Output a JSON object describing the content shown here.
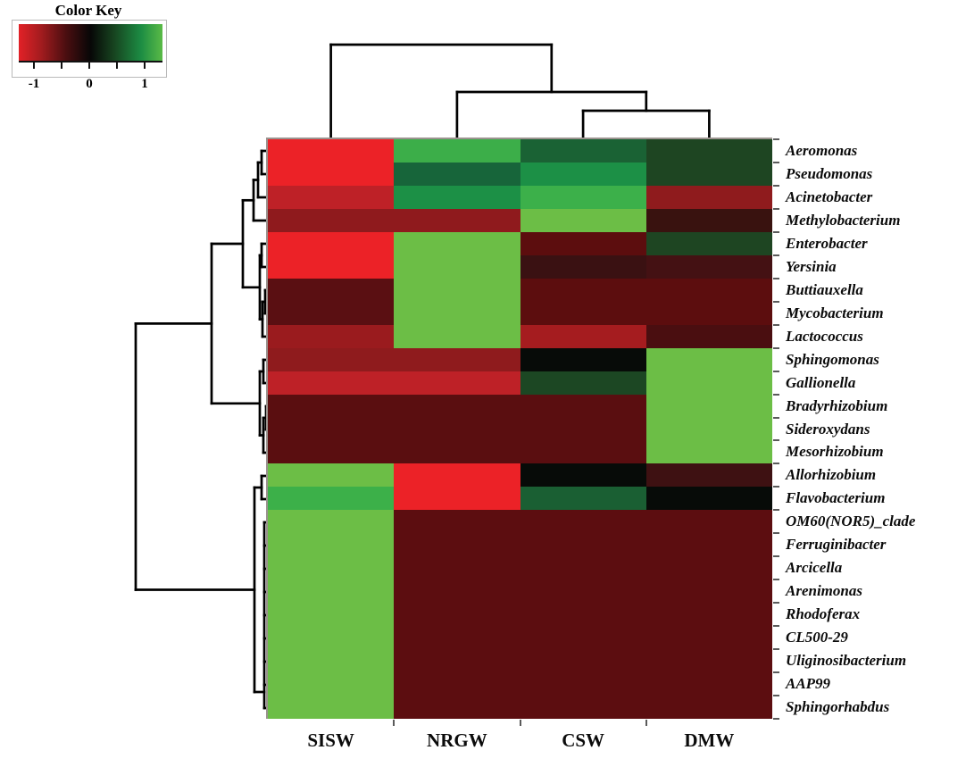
{
  "color_key": {
    "title": "Color Key",
    "ticks": [
      "-1",
      "0",
      "1"
    ],
    "gradient_stops": [
      "#e22127",
      "#a51c1f",
      "#4a0e10",
      "#070707",
      "#17431f",
      "#1c8c43",
      "#5abb47"
    ]
  },
  "chart_data": {
    "type": "heatmap",
    "title": "Color Key",
    "legend_position": "top-left",
    "colorbar_range": [
      -1,
      1
    ],
    "color_scale": {
      "negative": "#ec2227",
      "zero": "#000000",
      "positive": "#6cbe46"
    },
    "columns": [
      "SISW",
      "NRGW",
      "CSW",
      "DMW"
    ],
    "rows": [
      "Aeromonas",
      "Pseudomonas",
      "Acinetobacter",
      "Methylobacterium",
      "Enterobacter",
      "Yersinia",
      "Buttiauxella",
      "Mycobacterium",
      "Lactococcus",
      "Sphingomonas",
      "Gallionella",
      "Bradyrhizobium",
      "Sideroxydans",
      "Mesorhizobium",
      "Allorhizobium",
      "Flavobacterium",
      "OM60(NOR5)_clade",
      "Ferruginibacter",
      "Arcicella",
      "Arenimonas",
      "Rhodoferax",
      "CL500-29",
      "Uliginosibacterium",
      "AAP99",
      "Sphingorhabdus"
    ],
    "values": [
      [
        -1.2,
        0.95,
        0.5,
        0.3
      ],
      [
        -1.2,
        0.5,
        0.75,
        0.3
      ],
      [
        -0.9,
        0.75,
        0.95,
        -0.6
      ],
      [
        -0.6,
        -0.6,
        1.2,
        -0.15
      ],
      [
        -1.2,
        1.2,
        -0.35,
        0.3
      ],
      [
        -1.2,
        1.2,
        -0.15,
        -0.15
      ],
      [
        -0.35,
        1.2,
        -0.35,
        -0.35
      ],
      [
        -0.35,
        1.2,
        -0.35,
        -0.35
      ],
      [
        -0.7,
        1.2,
        -0.75,
        -0.25
      ],
      [
        -0.6,
        -0.6,
        0.0,
        1.2
      ],
      [
        -0.9,
        -0.9,
        0.3,
        1.2
      ],
      [
        -0.35,
        -0.35,
        -0.35,
        1.2
      ],
      [
        -0.35,
        -0.35,
        -0.35,
        1.2
      ],
      [
        -0.35,
        -0.35,
        -0.35,
        1.2
      ],
      [
        1.2,
        -1.2,
        0.0,
        -0.15
      ],
      [
        0.95,
        -1.2,
        0.5,
        0.0
      ],
      [
        1.2,
        -0.35,
        -0.35,
        -0.35
      ],
      [
        1.2,
        -0.35,
        -0.35,
        -0.35
      ],
      [
        1.2,
        -0.35,
        -0.35,
        -0.35
      ],
      [
        1.2,
        -0.35,
        -0.35,
        -0.35
      ],
      [
        1.2,
        -0.35,
        -0.35,
        -0.35
      ],
      [
        1.2,
        -0.35,
        -0.35,
        -0.35
      ],
      [
        1.2,
        -0.35,
        -0.35,
        -0.35
      ],
      [
        1.2,
        -0.35,
        -0.35,
        -0.35
      ],
      [
        1.2,
        -0.35,
        -0.35,
        -0.35
      ]
    ],
    "cell_colors": [
      [
        "#ec2227",
        "#3cae49",
        "#1a6234",
        "#1e4522"
      ],
      [
        "#ec2227",
        "#17653a",
        "#1c9046",
        "#1e4522"
      ],
      [
        "#be2127",
        "#1c9046",
        "#3cb04a",
        "#8f1b1d"
      ],
      [
        "#8f1a1d",
        "#8f1a1d",
        "#6cbe46",
        "#39120f"
      ],
      [
        "#ec2227",
        "#6cbe46",
        "#5c0d0e",
        "#1e4522"
      ],
      [
        "#ec2227",
        "#6cbe46",
        "#3a1112",
        "#441113"
      ],
      [
        "#5a0f12",
        "#6cbe46",
        "#5c0d0e",
        "#5c0d0e"
      ],
      [
        "#5a0f12",
        "#6cbe46",
        "#5c0d0e",
        "#5c0d0e"
      ],
      [
        "#9a1b1e",
        "#6cbe46",
        "#a51c1f",
        "#4a0e10"
      ],
      [
        "#8f1b1d",
        "#8f1b1d",
        "#070b08",
        "#6cbe46"
      ],
      [
        "#be2127",
        "#be2127",
        "#1c4723",
        "#6cbe46"
      ],
      [
        "#5a0e10",
        "#5a0e10",
        "#5a0e10",
        "#6cbe46"
      ],
      [
        "#5a0e10",
        "#5a0e10",
        "#5a0e10",
        "#6cbe46"
      ],
      [
        "#5a0e10",
        "#5a0e10",
        "#5a0e10",
        "#6cbe46"
      ],
      [
        "#6cbe46",
        "#ec2227",
        "#070b08",
        "#3e1112"
      ],
      [
        "#3cb049",
        "#ec2227",
        "#1a5f33",
        "#070b08"
      ],
      [
        "#6cbe46",
        "#5c0d10",
        "#5c0d10",
        "#5c0d10"
      ],
      [
        "#6cbe46",
        "#5c0d10",
        "#5c0d10",
        "#5c0d10"
      ],
      [
        "#6cbe46",
        "#5c0d10",
        "#5c0d10",
        "#5c0d10"
      ],
      [
        "#6cbe46",
        "#5c0d10",
        "#5c0d10",
        "#5c0d10"
      ],
      [
        "#6cbe46",
        "#5c0d10",
        "#5c0d10",
        "#5c0d10"
      ],
      [
        "#6cbe46",
        "#5c0d10",
        "#5c0d10",
        "#5c0d10"
      ],
      [
        "#6cbe46",
        "#5c0d10",
        "#5c0d10",
        "#5c0d10"
      ],
      [
        "#6cbe46",
        "#5c0d10",
        "#5c0d10",
        "#5c0d10"
      ],
      [
        "#6cbe46",
        "#5c0d10",
        "#5c0d10",
        "#5c0d10"
      ]
    ],
    "row_dendrogram_segments": [
      [
        300,
        169,
        293,
        169
      ],
      [
        300,
        195,
        293,
        195
      ],
      [
        293,
        169,
        293,
        195
      ],
      [
        293,
        182,
        289,
        182
      ],
      [
        300,
        221,
        289,
        221
      ],
      [
        289,
        182,
        289,
        221
      ],
      [
        289,
        201.5,
        284,
        201.5
      ],
      [
        300,
        247,
        284,
        247
      ],
      [
        284,
        201.5,
        284,
        247
      ],
      [
        300,
        273,
        293,
        273
      ],
      [
        300,
        299,
        293,
        299
      ],
      [
        293,
        273,
        293,
        299
      ],
      [
        300,
        325,
        297,
        325
      ],
      [
        300,
        351,
        297,
        351
      ],
      [
        297,
        325,
        297,
        351
      ],
      [
        297,
        338,
        294,
        338
      ],
      [
        300,
        377,
        294,
        377
      ],
      [
        294,
        338,
        294,
        377
      ],
      [
        293,
        286,
        291,
        286
      ],
      [
        294,
        357.5,
        291,
        357.5
      ],
      [
        291,
        286,
        291,
        357.5
      ],
      [
        284,
        224.3,
        272,
        224.3
      ],
      [
        291,
        321.8,
        272,
        321.8
      ],
      [
        272,
        224.3,
        272,
        321.8
      ],
      [
        300,
        403,
        295,
        403
      ],
      [
        300,
        429,
        295,
        429
      ],
      [
        295,
        403,
        295,
        429
      ],
      [
        300,
        455,
        298,
        455
      ],
      [
        300,
        481,
        298,
        481
      ],
      [
        298,
        455,
        298,
        481
      ],
      [
        298,
        468,
        295,
        468
      ],
      [
        300,
        507,
        295,
        507
      ],
      [
        295,
        468,
        295,
        507
      ],
      [
        295,
        416,
        291,
        416
      ],
      [
        295,
        487.5,
        291,
        487.5
      ],
      [
        291,
        416,
        291,
        487.5
      ],
      [
        272,
        273,
        237,
        273
      ],
      [
        291,
        451.8,
        237,
        451.8
      ],
      [
        237,
        273,
        237,
        451.8
      ],
      [
        300,
        533,
        293,
        533
      ],
      [
        300,
        559,
        293,
        559
      ],
      [
        293,
        533,
        293,
        559
      ],
      [
        300,
        585,
        296,
        585
      ],
      [
        300,
        611,
        296,
        611
      ],
      [
        300,
        637,
        296,
        637
      ],
      [
        300,
        663,
        296,
        663
      ],
      [
        300,
        689,
        296,
        689
      ],
      [
        300,
        715,
        296,
        715
      ],
      [
        300,
        741,
        296,
        741
      ],
      [
        300,
        767,
        296,
        767
      ],
      [
        300,
        793,
        296,
        793
      ],
      [
        296,
        585,
        296,
        793
      ],
      [
        293,
        546,
        285,
        546
      ],
      [
        296,
        775,
        285,
        775
      ],
      [
        285,
        546,
        285,
        775
      ],
      [
        237,
        362.4,
        152,
        362.4
      ],
      [
        285,
        660.5,
        152,
        660.5
      ],
      [
        152,
        362.4,
        152,
        660.5
      ]
    ],
    "col_dendrogram_segments": [
      [
        653.1,
        156,
        653.1,
        124
      ],
      [
        794.4,
        156,
        794.4,
        124
      ],
      [
        653.1,
        124,
        794.4,
        124
      ],
      [
        511.9,
        156,
        511.9,
        103
      ],
      [
        723.8,
        124,
        723.8,
        103
      ],
      [
        511.9,
        103,
        723.8,
        103
      ],
      [
        370.6,
        156,
        370.6,
        50
      ],
      [
        617.8,
        103,
        617.8,
        50
      ],
      [
        370.6,
        50,
        617.8,
        50
      ]
    ]
  }
}
